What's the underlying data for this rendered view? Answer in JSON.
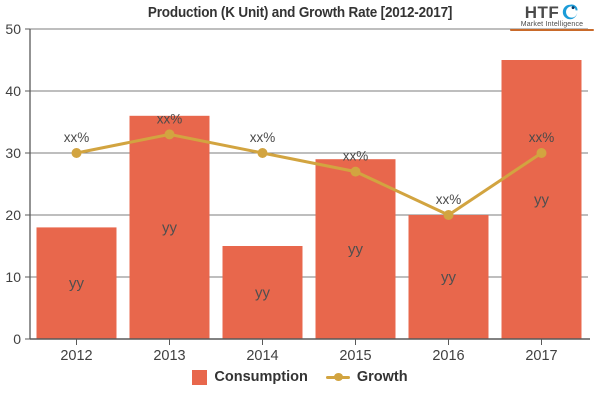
{
  "title": "Production (K Unit) and Growth Rate [2012-2017]",
  "logo": {
    "text": "HTF",
    "subtext": "Market Intelligence"
  },
  "legend": [
    {
      "label": "Consumption",
      "marker": "bar-square"
    },
    {
      "label": "Growth",
      "marker": "line-dot"
    }
  ],
  "colors": {
    "bar": "#e8674c",
    "line": "#d2a440",
    "marker": "#d2a440",
    "grid": "#7d7d7d",
    "axis": "#595959",
    "tick_text": "#404040",
    "bar_label": "#4f4f4f",
    "line_label": "#4a4a4a",
    "title": "#333333",
    "logo_icon": "#1b9cd8",
    "logo_rule": "#c96a2a"
  },
  "chart_data": {
    "type": "bar",
    "categories": [
      "2012",
      "2013",
      "2014",
      "2015",
      "2016",
      "2017"
    ],
    "series": [
      {
        "name": "Consumption",
        "type": "bar",
        "values": [
          18,
          36,
          15,
          29,
          20,
          45
        ],
        "data_labels": [
          "yy",
          "yy",
          "yy",
          "yy",
          "yy",
          "yy"
        ]
      },
      {
        "name": "Growth",
        "type": "line",
        "values": [
          30,
          33,
          30,
          27,
          20,
          30
        ],
        "data_labels": [
          "xx%",
          "xx%",
          "xx%",
          "xx%",
          "xx%",
          "xx%"
        ]
      }
    ],
    "title": "Production (K Unit) and Growth Rate [2012-2017]",
    "xlabel": "",
    "ylabel": "",
    "ylim": [
      0,
      50
    ],
    "yticks": [
      0,
      10,
      20,
      30,
      40,
      50
    ],
    "grid": true,
    "legend_position": "bottom"
  }
}
